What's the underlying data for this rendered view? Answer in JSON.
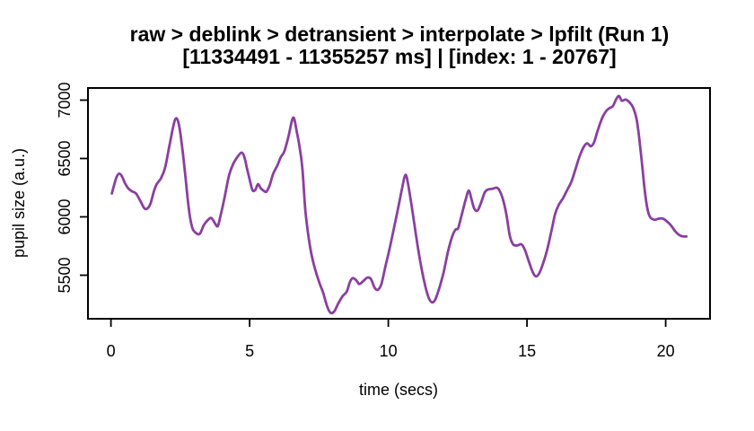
{
  "title": "raw > deblink > detransient > interpolate > lpfilt (Run 1)",
  "subtitle": "[11334491 - 11355257 ms] | [index: 1 - 20767]",
  "chart_data": {
    "type": "line",
    "title": "raw > deblink > detransient > interpolate > lpfilt (Run 1)",
    "subtitle": "[11334491 - 11355257 ms] | [index: 1 - 20767]",
    "xlabel": "time (secs)",
    "ylabel": "pupil size (a.u.)",
    "xticks": [
      0,
      5,
      10,
      15,
      20
    ],
    "yticks": [
      5500,
      6000,
      6500,
      7000
    ],
    "xlim": [
      -0.83,
      21.6
    ],
    "ylim": [
      5127,
      7104
    ],
    "grid": false,
    "legend": "none",
    "line_color": "#8A3FA0",
    "series": [
      {
        "name": "pupil_size",
        "x": [
          0.03,
          0.1,
          0.2,
          0.3,
          0.4,
          0.5,
          0.62,
          0.75,
          0.9,
          1.05,
          1.2,
          1.3,
          1.42,
          1.55,
          1.65,
          1.8,
          1.95,
          2.1,
          2.25,
          2.35,
          2.45,
          2.55,
          2.67,
          2.8,
          2.92,
          3.05,
          3.2,
          3.35,
          3.5,
          3.62,
          3.75,
          3.85,
          3.95,
          4.1,
          4.25,
          4.4,
          4.55,
          4.7,
          4.8,
          4.9,
          5.0,
          5.1,
          5.2,
          5.3,
          5.4,
          5.5,
          5.6,
          5.72,
          5.85,
          6.0,
          6.12,
          6.25,
          6.4,
          6.52,
          6.6,
          6.7,
          6.8,
          6.9,
          7.0,
          7.1,
          7.22,
          7.35,
          7.5,
          7.65,
          7.8,
          7.92,
          8.05,
          8.2,
          8.35,
          8.5,
          8.62,
          8.72,
          8.85,
          8.95,
          9.1,
          9.25,
          9.38,
          9.5,
          9.62,
          9.75,
          9.9,
          10.05,
          10.2,
          10.35,
          10.5,
          10.62,
          10.72,
          10.85,
          11.0,
          11.15,
          11.3,
          11.45,
          11.58,
          11.7,
          11.85,
          12.0,
          12.15,
          12.3,
          12.42,
          12.52,
          12.65,
          12.78,
          12.9,
          13.0,
          13.1,
          13.22,
          13.35,
          13.48,
          13.6,
          13.75,
          13.9,
          14.0,
          14.12,
          14.25,
          14.38,
          14.5,
          14.65,
          14.8,
          14.92,
          15.05,
          15.2,
          15.32,
          15.45,
          15.6,
          15.75,
          15.9,
          16.02,
          16.15,
          16.3,
          16.45,
          16.6,
          16.75,
          16.9,
          17.05,
          17.17,
          17.3,
          17.42,
          17.55,
          17.7,
          17.85,
          17.97,
          18.1,
          18.22,
          18.32,
          18.42,
          18.55,
          18.68,
          18.82,
          18.95,
          19.05,
          19.15,
          19.25,
          19.35,
          19.45,
          19.6,
          19.75,
          19.9,
          20.05,
          20.2,
          20.35,
          20.5,
          20.62,
          20.75
        ],
        "y": [
          6200,
          6260,
          6340,
          6370,
          6345,
          6290,
          6245,
          6220,
          6200,
          6140,
          6075,
          6070,
          6110,
          6220,
          6280,
          6330,
          6420,
          6600,
          6780,
          6845,
          6790,
          6630,
          6380,
          6080,
          5915,
          5865,
          5855,
          5930,
          5975,
          5990,
          5945,
          5920,
          6010,
          6170,
          6350,
          6450,
          6510,
          6550,
          6520,
          6420,
          6320,
          6230,
          6230,
          6280,
          6245,
          6225,
          6215,
          6270,
          6370,
          6440,
          6510,
          6560,
          6690,
          6820,
          6845,
          6730,
          6600,
          6420,
          6080,
          5870,
          5690,
          5560,
          5445,
          5350,
          5230,
          5178,
          5190,
          5260,
          5320,
          5360,
          5445,
          5475,
          5455,
          5425,
          5450,
          5480,
          5465,
          5395,
          5375,
          5425,
          5580,
          5730,
          5900,
          6070,
          6250,
          6360,
          6270,
          6080,
          5840,
          5620,
          5440,
          5310,
          5268,
          5295,
          5400,
          5530,
          5700,
          5830,
          5890,
          5905,
          6020,
          6140,
          6225,
          6150,
          6070,
          6055,
          6125,
          6210,
          6235,
          6240,
          6250,
          6230,
          6160,
          6030,
          5840,
          5765,
          5755,
          5765,
          5720,
          5630,
          5530,
          5490,
          5520,
          5615,
          5740,
          5900,
          6030,
          6105,
          6160,
          6230,
          6300,
          6410,
          6520,
          6600,
          6630,
          6605,
          6640,
          6740,
          6840,
          6905,
          6930,
          6950,
          7010,
          7035,
          6995,
          7005,
          6985,
          6940,
          6840,
          6670,
          6450,
          6220,
          6060,
          5995,
          5975,
          5985,
          5985,
          5960,
          5925,
          5875,
          5843,
          5833,
          5832
        ]
      }
    ]
  }
}
